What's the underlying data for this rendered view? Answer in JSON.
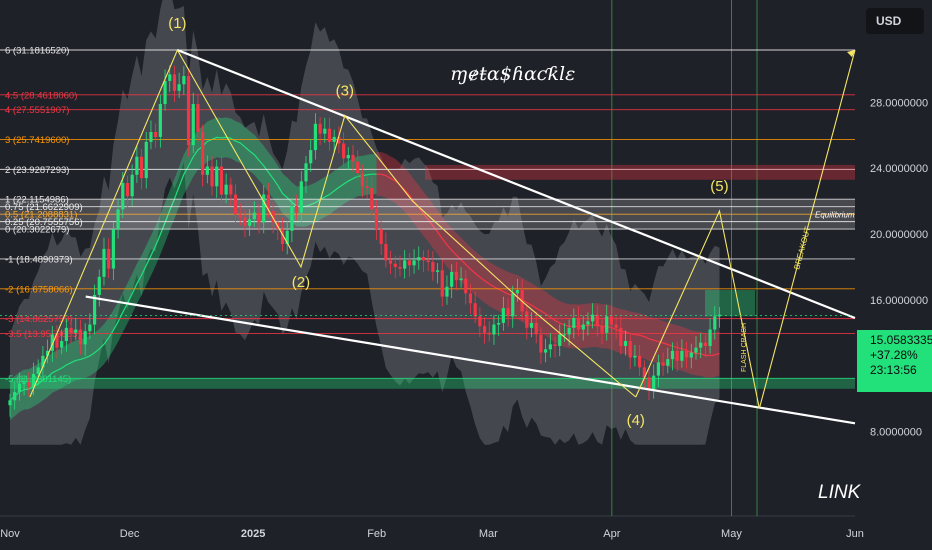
{
  "header": {
    "currency": "USD"
  },
  "watermark": "ɱɇŧɑ$ɦɑƈƙlɛ",
  "symbol": "LINK",
  "price_tag": {
    "price": "15.0583335",
    "change": "+37.28%",
    "countdown": "23:13:56"
  },
  "colors": {
    "background": "#1f2128",
    "up_candle": "#22e07a",
    "down_candle": "#f23645",
    "fib_white": "#ffffff",
    "fib_red": "#f23645",
    "fib_orange": "#ff9800",
    "wave": "#f5e663",
    "price_tag": "#22e07a"
  },
  "chart_data": {
    "type": "candlestick",
    "x_ticks": [
      "Nov",
      "Dec",
      "2025",
      "Feb",
      "Mar",
      "Apr",
      "May",
      "Jun"
    ],
    "x_dates": [
      "2024-11-01",
      "2024-12-01",
      "2025-01-01",
      "2025-02-01",
      "2025-03-01",
      "2025-04-01",
      "2025-05-01",
      "2025-06-01"
    ],
    "y_ticks": [
      8,
      12,
      16,
      20,
      24,
      28
    ],
    "y_tick_labels": [
      "8.0000000",
      "12.0000000",
      "16.0000000",
      "20.0000000",
      "24.0000000",
      "28.0000000"
    ],
    "ylim": [
      6.8,
      33.8
    ],
    "fib_levels": [
      {
        "label": "6 (31.1816520)",
        "value": 31.181652,
        "color": "white"
      },
      {
        "label": "4.5 (28.4618060)",
        "value": 28.461806,
        "color": "red"
      },
      {
        "label": "4 (27.5551907)",
        "value": 27.5551907,
        "color": "red"
      },
      {
        "label": "3 (25.7419600)",
        "value": 25.74196,
        "color": "orange"
      },
      {
        "label": "2 (23.9287293)",
        "value": 23.9287293,
        "color": "white"
      },
      {
        "label": "1 (22.1154986)",
        "value": 22.1154986,
        "color": "white"
      },
      {
        "label": "0.75 (21.6622909)",
        "value": 21.6622909,
        "color": "white"
      },
      {
        "label": "0.5 (21.2088831)",
        "value": 21.2088831,
        "color": "orange"
      },
      {
        "label": "0.25 (20.7555756)",
        "value": 20.7555756,
        "color": "white"
      },
      {
        "label": "0 (20.3022679)",
        "value": 20.3022679,
        "color": "white"
      },
      {
        "label": "-1 (18.4890373)",
        "value": 18.4890373,
        "color": "white"
      },
      {
        "label": "-2 (16.6758066)",
        "value": 16.6758066,
        "color": "orange"
      },
      {
        "label": "-3 (14.8625759)",
        "value": 14.8625759,
        "color": "red"
      },
      {
        "label": "-3.5 (13.9559605)",
        "value": 13.9559605,
        "color": "red"
      },
      {
        "label": "-5 (11.2361145)",
        "value": 11.2361145,
        "color": "green"
      }
    ],
    "waves": [
      {
        "label": "(1)",
        "date": "2024-12-13",
        "price": 31.18
      },
      {
        "label": "(2)",
        "date": "2025-01-13",
        "price": 18.0
      },
      {
        "label": "(3)",
        "date": "2025-01-24",
        "price": 27.2
      },
      {
        "label": "(4)",
        "date": "2025-04-07",
        "price": 10.1
      },
      {
        "label": "(5)",
        "date": "2025-04-28",
        "price": 21.4
      }
    ],
    "annotations": [
      "Equilibrium",
      "FLASH CRASH",
      "BREAKOUT"
    ],
    "trendlines": [
      {
        "name": "upper",
        "from": [
          "2024-12-13",
          31.18
        ],
        "to": [
          "2025-06-01",
          14.9
        ]
      },
      {
        "name": "lower",
        "from": [
          "2024-11-20",
          16.2
        ],
        "to": [
          "2025-06-01",
          8.5
        ]
      }
    ],
    "forecast_path": [
      [
        "2025-04-07",
        10.1
      ],
      [
        "2025-04-28",
        21.4
      ],
      [
        "2025-05-08",
        9.4
      ],
      [
        "2025-06-01",
        31.18
      ]
    ],
    "yellow_path": [
      [
        "2024-11-06",
        10.1
      ],
      [
        "2024-12-13",
        31.18
      ],
      [
        "2025-01-13",
        18.0
      ],
      [
        "2025-01-24",
        27.2
      ],
      [
        "2025-02-10",
        22.0
      ],
      [
        "2025-03-10",
        15.8
      ],
      [
        "2025-04-07",
        10.1
      ]
    ],
    "candles_close": [
      9.9,
      10.4,
      10.9,
      11.0,
      10.7,
      11.5,
      11.9,
      12.6,
      12.9,
      13.9,
      13.1,
      13.5,
      14.3,
      14.0,
      14.2,
      13.3,
      14.1,
      14.5,
      16.3,
      17.4,
      19.1,
      17.9,
      20.3,
      21.5,
      23.1,
      22.3,
      23.6,
      24.7,
      23.4,
      25.6,
      26.2,
      25.9,
      27.9,
      29.3,
      29.7,
      28.7,
      29.1,
      29.6,
      25.4,
      27.9,
      26.2,
      23.6,
      24.1,
      22.9,
      24.1,
      22.4,
      23.0,
      22.4,
      21.2,
      21.0,
      20.5,
      20.9,
      21.3,
      20.7,
      22.4,
      21.4,
      20.7,
      20.3,
      19.4,
      20.2,
      21.7,
      21.3,
      23.2,
      24.3,
      25.1,
      26.7,
      26.1,
      26.4,
      25.6,
      25.9,
      25.5,
      24.6,
      24.8,
      24.4,
      23.7,
      22.9,
      22.8,
      21.5,
      20.3,
      19.4,
      18.4,
      18.2,
      18.0,
      17.9,
      18.4,
      18.1,
      18.4,
      18.6,
      18.4,
      18.3,
      17.7,
      17.8,
      16.2,
      16.8,
      17.7,
      17.2,
      17.3,
      16.4,
      15.8,
      15.0,
      14.4,
      14.0,
      13.9,
      14.5,
      14.6,
      15.5,
      15.0,
      16.4,
      16.6,
      15.3,
      14.3,
      14.6,
      13.9,
      12.8,
      13.0,
      13.3,
      13.2,
      13.9,
      13.9,
      14.3,
      14.9,
      14.2,
      14.5,
      14.7,
      15.1,
      14.4,
      14.0,
      15.0,
      14.5,
      14.3,
      13.2,
      13.5,
      12.5,
      12.6,
      11.9,
      11.3,
      10.5,
      11.4,
      12.2,
      12.0,
      12.4,
      12.9,
      12.3,
      12.9,
      12.5,
      12.8,
      13.1,
      13.4,
      13.2,
      14.2,
      15.0,
      15.1
    ]
  }
}
